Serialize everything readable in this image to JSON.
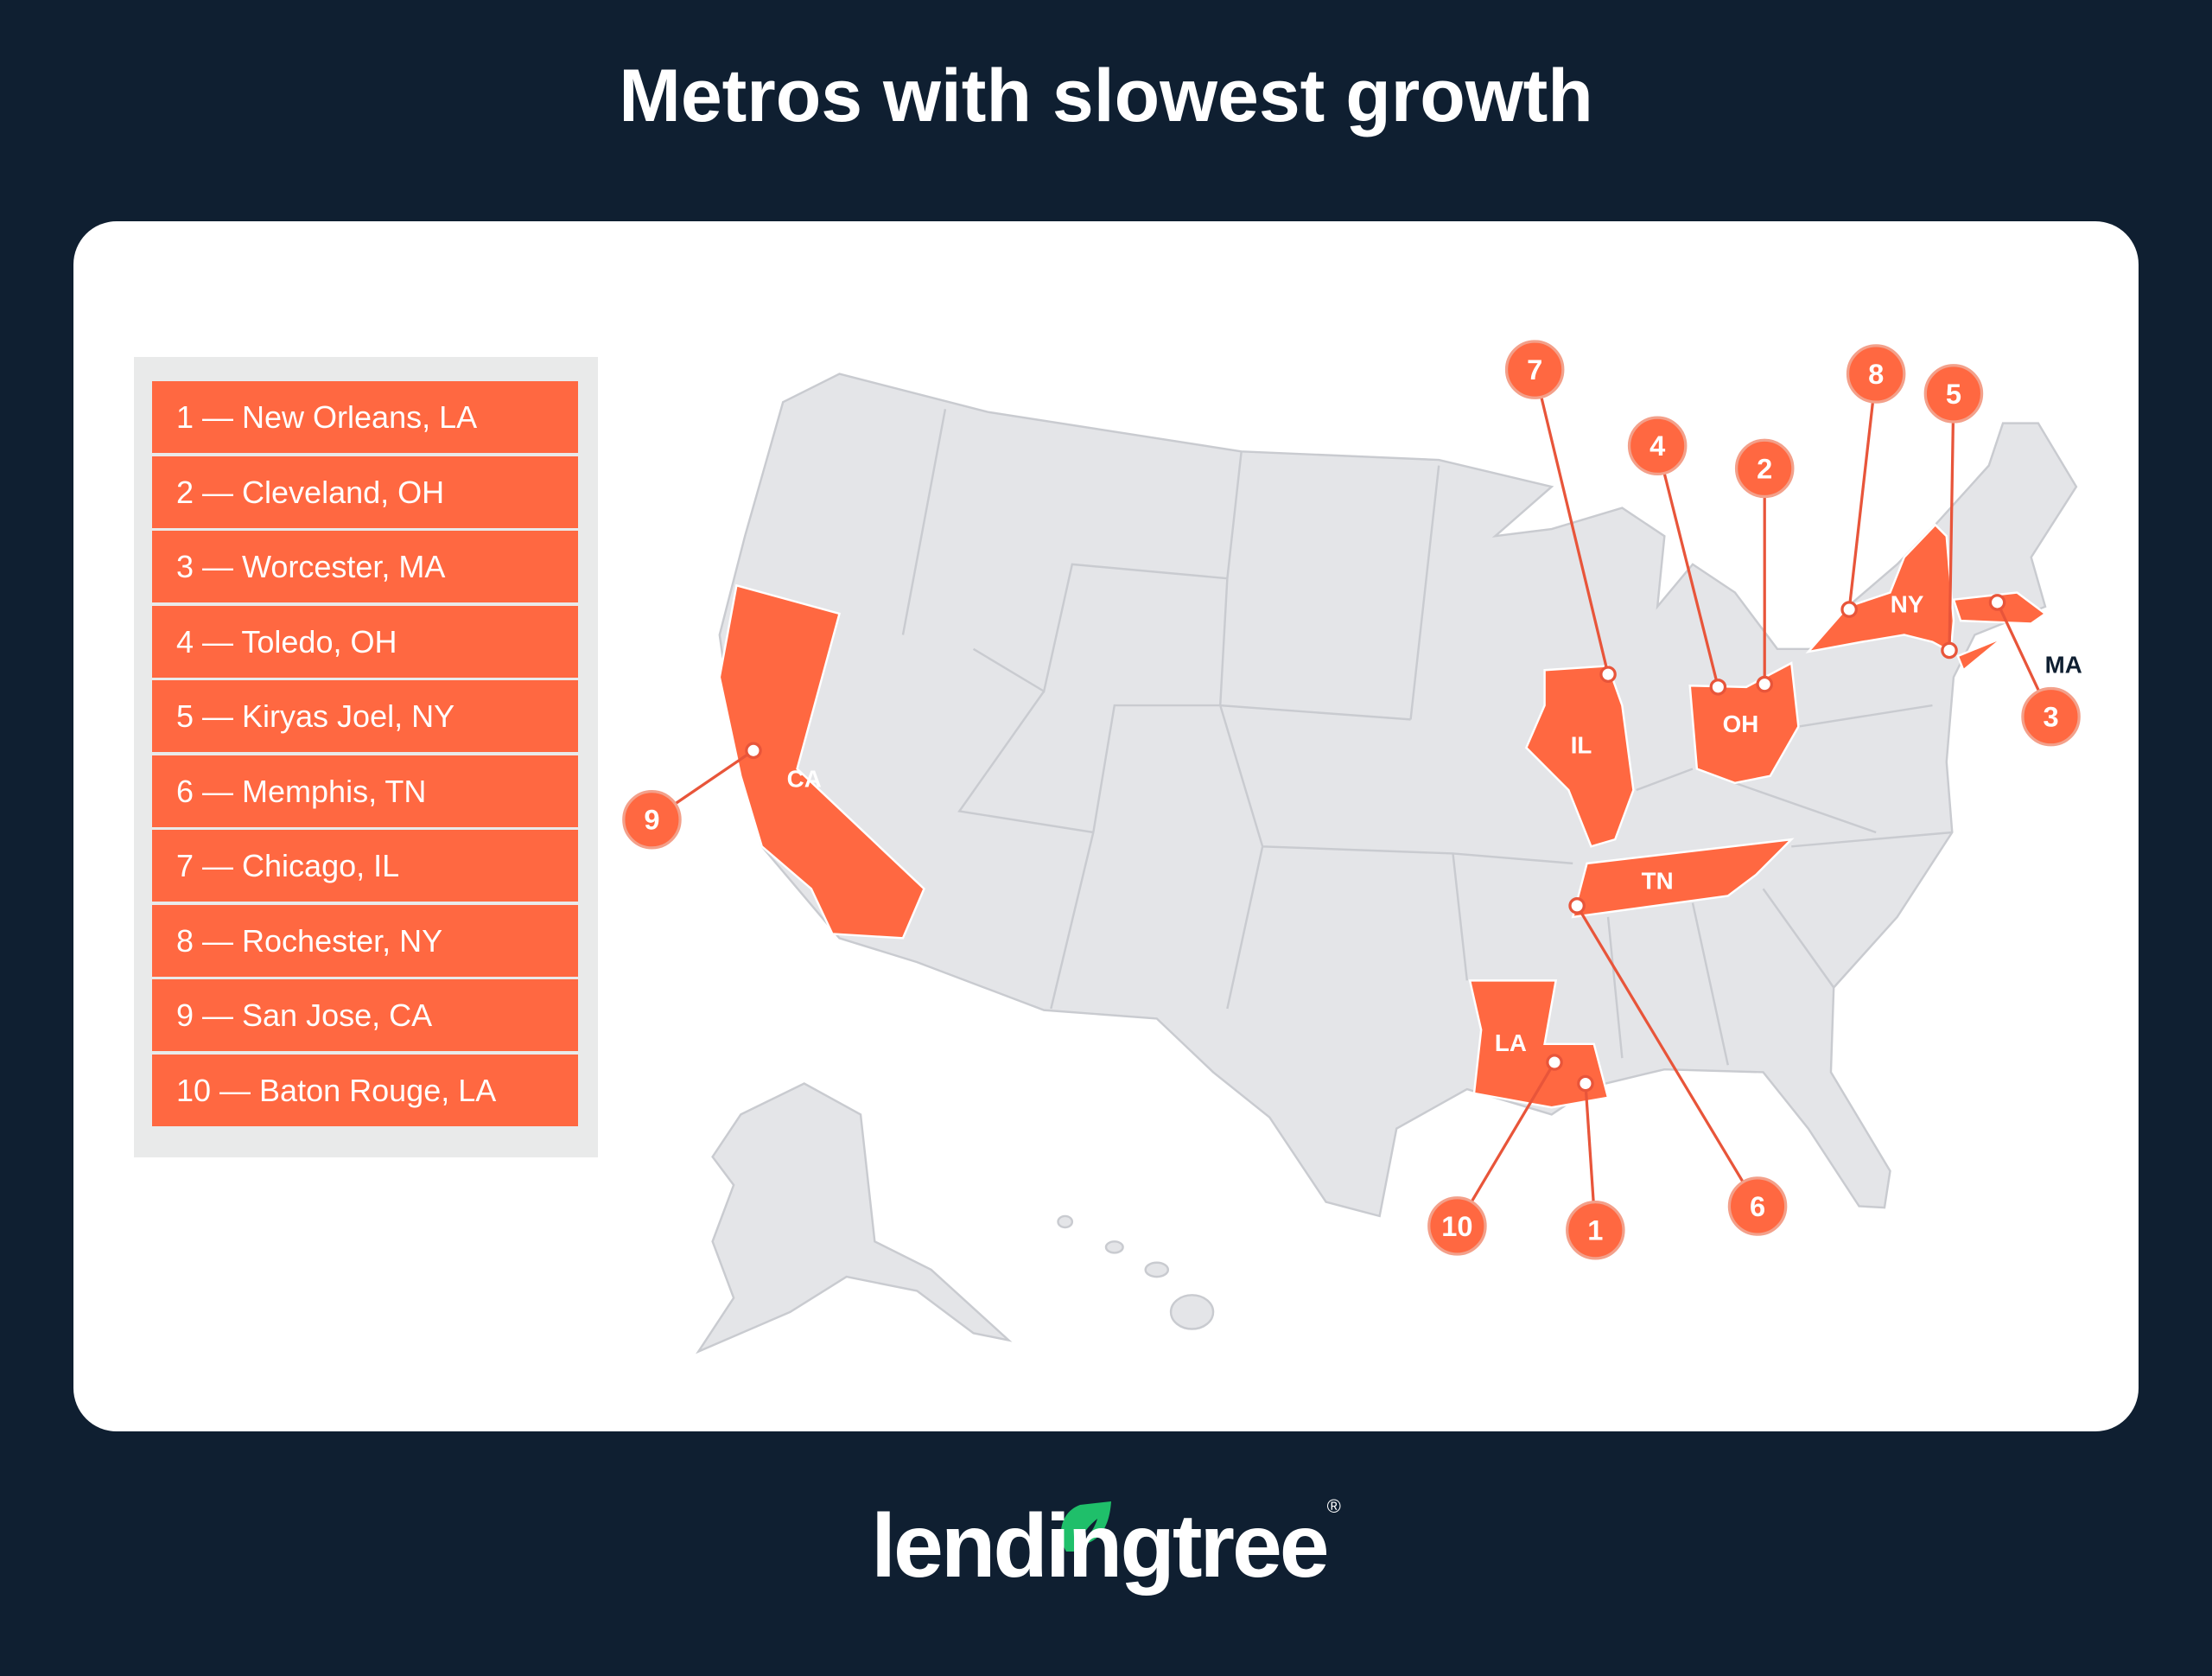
{
  "title": "Metros with slowest growth",
  "legend": [
    "1 — New Orleans, LA",
    "2 — Cleveland, OH",
    "3 — Worcester, MA",
    "4 — Toledo, OH",
    "5 — Kiryas Joel, NY",
    "6 — Memphis, TN",
    "7 — Chicago, IL",
    "8 — Rochester, NY",
    "9 — San Jose, CA",
    "10 — Baton Rouge, LA"
  ],
  "states": {
    "CA": "CA",
    "IL": "IL",
    "OH": "OH",
    "NY": "NY",
    "TN": "TN",
    "LA": "LA",
    "MA": "MA"
  },
  "pins": {
    "p1": "1",
    "p2": "2",
    "p3": "3",
    "p4": "4",
    "p5": "5",
    "p6": "6",
    "p7": "7",
    "p8": "8",
    "p9": "9",
    "p10": "10"
  },
  "colors": {
    "background": "#0f1f31",
    "highlight": "#ff6841",
    "land": "#e4e5e8",
    "logo_leaf": "#1fbf6a"
  },
  "logo": {
    "text": "lendingtree",
    "registered": "®"
  }
}
